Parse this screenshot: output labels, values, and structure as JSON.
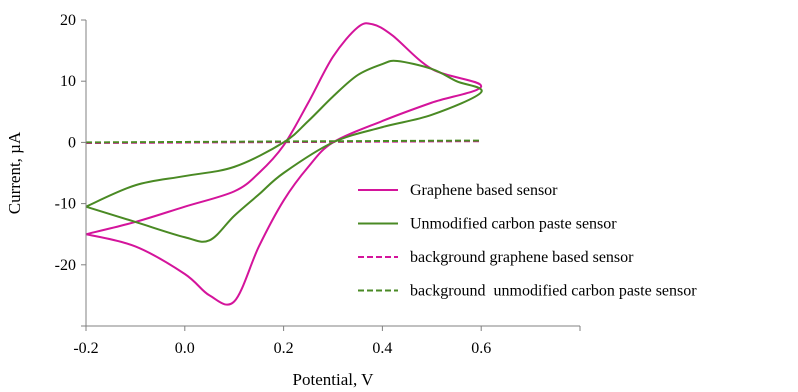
{
  "chart_data": {
    "type": "line",
    "title": "",
    "xlabel": "Potential, V",
    "ylabel": "Current, µA",
    "xlim": [
      -0.2,
      0.8
    ],
    "ylim": [
      -30,
      20
    ],
    "x_ticks": [
      {
        "value": -0.2,
        "label": "-0.2"
      },
      {
        "value": 0.0,
        "label": "0.0"
      },
      {
        "value": 0.2,
        "label": "0.2"
      },
      {
        "value": 0.4,
        "label": "0.4"
      },
      {
        "value": 0.6,
        "label": "0.6"
      }
    ],
    "y_ticks": [
      {
        "value": 20,
        "label": "20"
      },
      {
        "value": 10,
        "label": "10"
      },
      {
        "value": 0,
        "label": "0"
      },
      {
        "value": -10,
        "label": "-10"
      },
      {
        "value": -20,
        "label": "-20"
      }
    ],
    "grid": false,
    "legend_position": "bottom-right",
    "series": [
      {
        "name": "Graphene based sensor",
        "color": "#d4149b",
        "dash": "solid",
        "x": [
          -0.2,
          -0.1,
          0.0,
          0.1,
          0.15,
          0.2,
          0.25,
          0.3,
          0.35,
          0.38,
          0.42,
          0.5,
          0.6,
          0.5,
          0.4,
          0.3,
          0.25,
          0.2,
          0.15,
          0.1,
          0.05,
          0.0,
          -0.1,
          -0.2
        ],
        "y": [
          -15,
          -13,
          -10.5,
          -8,
          -5,
          -0.5,
          6.5,
          14,
          18.8,
          19.3,
          17.5,
          12,
          9.2,
          6.5,
          3.5,
          0,
          -4,
          -9.5,
          -17,
          -26,
          -25,
          -21.5,
          -17,
          -15
        ]
      },
      {
        "name": "Unmodified carbon paste sensor",
        "color": "#4a8a24",
        "dash": "solid",
        "x": [
          -0.2,
          -0.1,
          0.0,
          0.1,
          0.2,
          0.25,
          0.3,
          0.35,
          0.4,
          0.43,
          0.5,
          0.55,
          0.6,
          0.5,
          0.4,
          0.3,
          0.2,
          0.15,
          0.1,
          0.05,
          0.0,
          -0.1,
          -0.2
        ],
        "y": [
          -10.5,
          -7,
          -5.5,
          -4,
          0,
          3.5,
          7.5,
          11,
          12.8,
          13.3,
          12,
          10,
          8.2,
          4.5,
          2.5,
          0,
          -5,
          -8.5,
          -12,
          -16,
          -15.5,
          -13,
          -10.5
        ]
      },
      {
        "name": "background graphene based sensor",
        "color": "#d4149b",
        "dash": "dashed",
        "x": [
          -0.2,
          0.6
        ],
        "y": [
          -0.1,
          0.2
        ]
      },
      {
        "name": "background  unmodified carbon paste sensor",
        "color": "#4a8a24",
        "dash": "dashed",
        "x": [
          -0.2,
          0.6
        ],
        "y": [
          0.0,
          0.3
        ]
      }
    ]
  }
}
